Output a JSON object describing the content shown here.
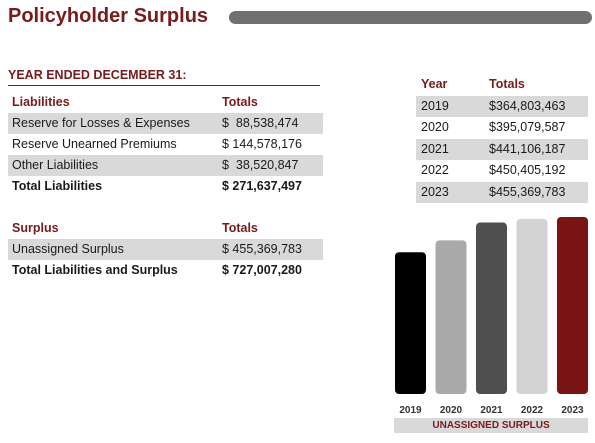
{
  "page": {
    "title": "Policyholder Surplus"
  },
  "section_heading": "YEAR ENDED DECEMBER 31:",
  "liabilities": {
    "header_label": "Liabilities",
    "header_totals": "Totals",
    "rows": [
      {
        "label": "Reserve for Losses & Expenses",
        "value": "$  88,538,474"
      },
      {
        "label": "Reserve Unearned Premiums",
        "value": "$ 144,578,176"
      },
      {
        "label": "Other Liabilities",
        "value": "$  38,520,847"
      }
    ],
    "total": {
      "label": "Total Liabilities",
      "value": "$ 271,637,497"
    }
  },
  "surplus": {
    "header_label": "Surplus",
    "header_totals": "Totals",
    "rows": [
      {
        "label": "Unassigned Surplus",
        "value": "$ 455,369,783"
      }
    ],
    "total": {
      "label": "Total Liabilities and Surplus",
      "value": "$ 727,007,280"
    }
  },
  "year_table": {
    "header_year": "Year",
    "header_totals": "Totals",
    "rows": [
      {
        "year": "2019",
        "total": "$364,803,463"
      },
      {
        "year": "2020",
        "total": "$395,079,587"
      },
      {
        "year": "2021",
        "total": "$441,106,187"
      },
      {
        "year": "2022",
        "total": "$450,405,192"
      },
      {
        "year": "2023",
        "total": "$455,369,783"
      }
    ]
  },
  "chart_data": {
    "type": "bar",
    "title": "UNASSIGNED SURPLUS",
    "categories": [
      "2019",
      "2020",
      "2021",
      "2022",
      "2023"
    ],
    "values": [
      364803463,
      395079587,
      441106187,
      450405192,
      455369783
    ],
    "colors": [
      "#000000",
      "#a9a9a9",
      "#4f4f4f",
      "#d3d3d3",
      "#7a1414"
    ],
    "grid": false
  },
  "colors": {
    "accent": "#7a1a1a",
    "shade": "#d9d9d9",
    "title_bar": "#707070"
  }
}
